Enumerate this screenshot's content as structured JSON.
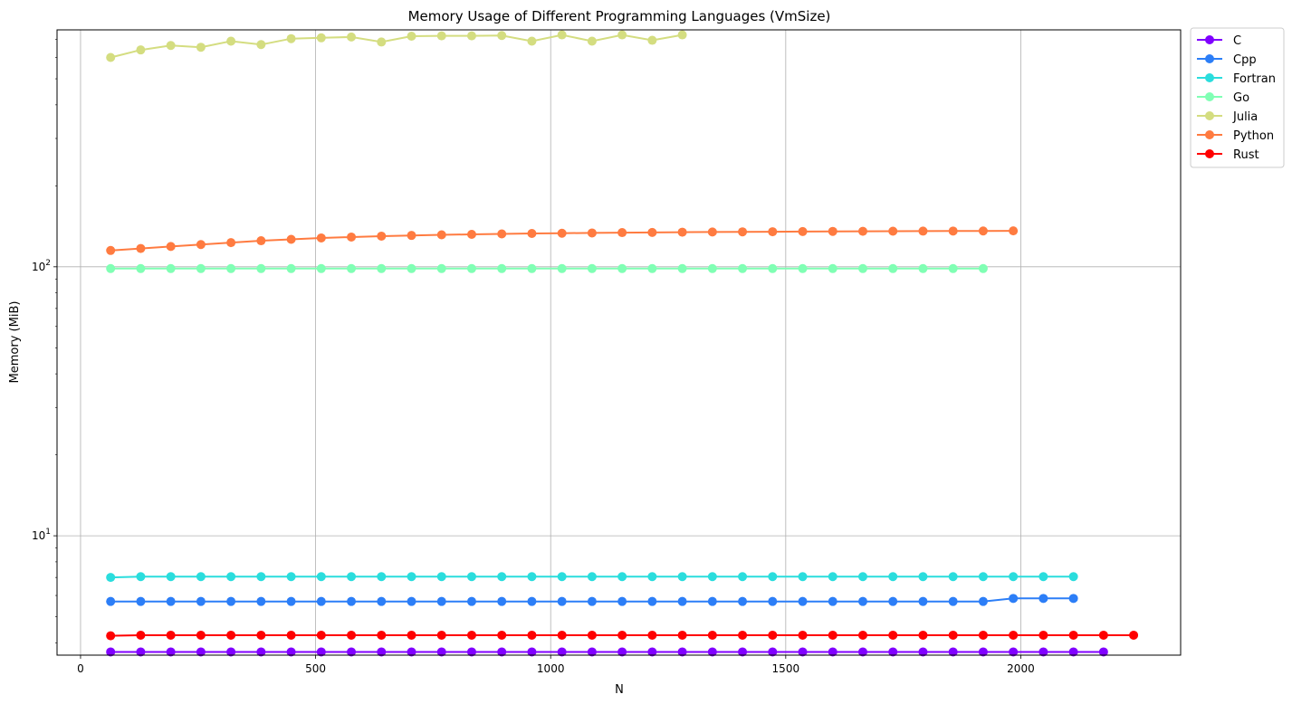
{
  "chart_data": {
    "type": "line",
    "title": "Memory Usage of Different Programming Languages (VmSize)",
    "xlabel": "N",
    "ylabel": "Memory (MiB)",
    "xscale": "linear",
    "yscale": "log",
    "xlim": [
      -50,
      2340
    ],
    "ylim": [
      3.6,
      760
    ],
    "xticks": [
      0,
      500,
      1000,
      1500,
      2000
    ],
    "xtick_labels": [
      "0",
      "500",
      "1000",
      "1500",
      "2000"
    ],
    "yticks": [
      10,
      100
    ],
    "ytick_labels": [
      {
        "base": "10",
        "exp": "1"
      },
      {
        "base": "10",
        "exp": "2"
      }
    ],
    "grid": true,
    "legend_position": "outside-top-right",
    "series": [
      {
        "name": "C",
        "color": "#8000ff",
        "x": [
          64,
          128,
          192,
          256,
          320,
          384,
          448,
          512,
          576,
          640,
          704,
          768,
          832,
          896,
          960,
          1024,
          1088,
          1152,
          1216,
          1280,
          1344,
          1408,
          1472,
          1536,
          1600,
          1664,
          1728,
          1792,
          1856,
          1920,
          1984,
          2048,
          2112,
          2176
        ],
        "y": [
          3.7,
          3.7,
          3.7,
          3.7,
          3.7,
          3.7,
          3.7,
          3.7,
          3.7,
          3.7,
          3.7,
          3.7,
          3.7,
          3.7,
          3.7,
          3.7,
          3.7,
          3.7,
          3.7,
          3.7,
          3.7,
          3.7,
          3.7,
          3.7,
          3.7,
          3.7,
          3.7,
          3.7,
          3.7,
          3.7,
          3.7,
          3.7,
          3.7,
          3.7
        ]
      },
      {
        "name": "Cpp",
        "color": "#2c7ef7",
        "x": [
          64,
          128,
          192,
          256,
          320,
          384,
          448,
          512,
          576,
          640,
          704,
          768,
          832,
          896,
          960,
          1024,
          1088,
          1152,
          1216,
          1280,
          1344,
          1408,
          1472,
          1536,
          1600,
          1664,
          1728,
          1792,
          1856,
          1920,
          1984,
          2048,
          2112
        ],
        "y": [
          5.7,
          5.7,
          5.7,
          5.7,
          5.7,
          5.7,
          5.7,
          5.7,
          5.7,
          5.7,
          5.7,
          5.7,
          5.7,
          5.7,
          5.7,
          5.7,
          5.7,
          5.7,
          5.7,
          5.7,
          5.7,
          5.7,
          5.7,
          5.7,
          5.7,
          5.7,
          5.7,
          5.7,
          5.7,
          5.7,
          5.85,
          5.85,
          5.85
        ]
      },
      {
        "name": "Fortran",
        "color": "#2adddd",
        "x": [
          64,
          128,
          192,
          256,
          320,
          384,
          448,
          512,
          576,
          640,
          704,
          768,
          832,
          896,
          960,
          1024,
          1088,
          1152,
          1216,
          1280,
          1344,
          1408,
          1472,
          1536,
          1600,
          1664,
          1728,
          1792,
          1856,
          1920,
          1984,
          2048,
          2112
        ],
        "y": [
          7.0,
          7.05,
          7.05,
          7.05,
          7.05,
          7.05,
          7.05,
          7.05,
          7.05,
          7.05,
          7.05,
          7.05,
          7.05,
          7.05,
          7.05,
          7.05,
          7.05,
          7.05,
          7.05,
          7.05,
          7.05,
          7.05,
          7.05,
          7.05,
          7.05,
          7.05,
          7.05,
          7.05,
          7.05,
          7.05,
          7.05,
          7.05,
          7.05
        ]
      },
      {
        "name": "Go",
        "color": "#80ffb4",
        "x": [
          64,
          128,
          192,
          256,
          320,
          384,
          448,
          512,
          576,
          640,
          704,
          768,
          832,
          896,
          960,
          1024,
          1088,
          1152,
          1216,
          1280,
          1344,
          1408,
          1472,
          1536,
          1600,
          1664,
          1728,
          1792,
          1856,
          1920
        ],
        "y": [
          98.5,
          98.5,
          98.5,
          98.5,
          98.5,
          98.5,
          98.5,
          98.5,
          98.5,
          98.5,
          98.5,
          98.5,
          98.5,
          98.5,
          98.5,
          98.5,
          98.5,
          98.5,
          98.5,
          98.5,
          98.5,
          98.5,
          98.5,
          98.5,
          98.5,
          98.5,
          98.5,
          98.5,
          98.5,
          98.5
        ]
      },
      {
        "name": "Julia",
        "color": "#d4dd80",
        "x": [
          64,
          128,
          192,
          256,
          320,
          384,
          448,
          512,
          576,
          640,
          704,
          768,
          832,
          896,
          960,
          1024,
          1088,
          1152,
          1216,
          1280
        ],
        "y": [
          600,
          640,
          665,
          655,
          690,
          670,
          705,
          710,
          715,
          685,
          720,
          722,
          722,
          724,
          690,
          728,
          690,
          728,
          695,
          728
        ]
      },
      {
        "name": "Python",
        "color": "#ff7b40",
        "x": [
          64,
          128,
          192,
          256,
          320,
          384,
          448,
          512,
          576,
          640,
          704,
          768,
          832,
          896,
          960,
          1024,
          1088,
          1152,
          1216,
          1280,
          1344,
          1408,
          1472,
          1536,
          1600,
          1664,
          1728,
          1792,
          1856,
          1920,
          1984
        ],
        "y": [
          115,
          117,
          119,
          121,
          123,
          125,
          126.5,
          128,
          129,
          130,
          130.8,
          131.5,
          132,
          132.5,
          133,
          133.3,
          133.6,
          134,
          134.2,
          134.5,
          134.7,
          134.9,
          135,
          135.2,
          135.4,
          135.5,
          135.6,
          135.7,
          135.8,
          135.9,
          136
        ]
      },
      {
        "name": "Rust",
        "color": "#ff0000",
        "x": [
          64,
          128,
          192,
          256,
          320,
          384,
          448,
          512,
          576,
          640,
          704,
          768,
          832,
          896,
          960,
          1024,
          1088,
          1152,
          1216,
          1280,
          1344,
          1408,
          1472,
          1536,
          1600,
          1664,
          1728,
          1792,
          1856,
          1920,
          1984,
          2048,
          2112,
          2176,
          2240
        ],
        "y": [
          4.25,
          4.27,
          4.27,
          4.27,
          4.27,
          4.27,
          4.27,
          4.27,
          4.27,
          4.27,
          4.27,
          4.27,
          4.27,
          4.27,
          4.27,
          4.27,
          4.27,
          4.27,
          4.27,
          4.27,
          4.27,
          4.27,
          4.27,
          4.27,
          4.27,
          4.27,
          4.27,
          4.27,
          4.27,
          4.27,
          4.27,
          4.27,
          4.27,
          4.27,
          4.27
        ]
      }
    ]
  }
}
